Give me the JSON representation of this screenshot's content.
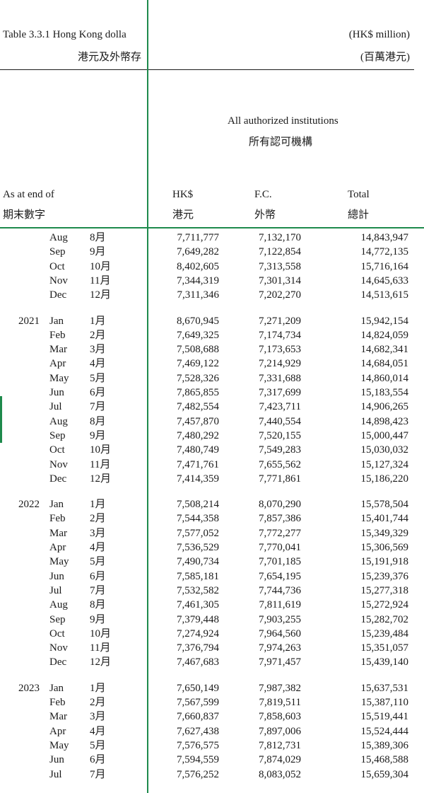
{
  "title_en": "Table 3.3.1  Hong Kong dolla",
  "title_zh": "港元及外幣存",
  "unit_en": "(HK$ million)",
  "unit_zh": "(百萬港元)",
  "group_en": "All authorized institutions",
  "group_zh": "所有認可機構",
  "col_period_en": "As at end of",
  "col_period_zh": "期末數字",
  "col_hk_en": "HK$",
  "col_hk_zh": "港元",
  "col_fc_en": "F.C.",
  "col_fc_zh": "外幣",
  "col_total_en": "Total",
  "col_total_zh": "總計",
  "rows": [
    {
      "year": "",
      "mon": "Aug",
      "zh": "8月",
      "hk": "7,711,777",
      "fc": "7,132,170",
      "total": "14,843,947"
    },
    {
      "year": "",
      "mon": "Sep",
      "zh": "9月",
      "hk": "7,649,282",
      "fc": "7,122,854",
      "total": "14,772,135"
    },
    {
      "year": "",
      "mon": "Oct",
      "zh": "10月",
      "hk": "8,402,605",
      "fc": "7,313,558",
      "total": "15,716,164"
    },
    {
      "year": "",
      "mon": "Nov",
      "zh": "11月",
      "hk": "7,344,319",
      "fc": "7,301,314",
      "total": "14,645,633"
    },
    {
      "year": "",
      "mon": "Dec",
      "zh": "12月",
      "hk": "7,311,346",
      "fc": "7,202,270",
      "total": "14,513,615"
    },
    {
      "year": "2021",
      "mon": "Jan",
      "zh": "1月",
      "hk": "8,670,945",
      "fc": "7,271,209",
      "total": "15,942,154"
    },
    {
      "year": "",
      "mon": "Feb",
      "zh": "2月",
      "hk": "7,649,325",
      "fc": "7,174,734",
      "total": "14,824,059"
    },
    {
      "year": "",
      "mon": "Mar",
      "zh": "3月",
      "hk": "7,508,688",
      "fc": "7,173,653",
      "total": "14,682,341"
    },
    {
      "year": "",
      "mon": "Apr",
      "zh": "4月",
      "hk": "7,469,122",
      "fc": "7,214,929",
      "total": "14,684,051"
    },
    {
      "year": "",
      "mon": "May",
      "zh": "5月",
      "hk": "7,528,326",
      "fc": "7,331,688",
      "total": "14,860,014"
    },
    {
      "year": "",
      "mon": "Jun",
      "zh": "6月",
      "hk": "7,865,855",
      "fc": "7,317,699",
      "total": "15,183,554"
    },
    {
      "year": "",
      "mon": "Jul",
      "zh": "7月",
      "hk": "7,482,554",
      "fc": "7,423,711",
      "total": "14,906,265"
    },
    {
      "year": "",
      "mon": "Aug",
      "zh": "8月",
      "hk": "7,457,870",
      "fc": "7,440,554",
      "total": "14,898,423"
    },
    {
      "year": "",
      "mon": "Sep",
      "zh": "9月",
      "hk": "7,480,292",
      "fc": "7,520,155",
      "total": "15,000,447"
    },
    {
      "year": "",
      "mon": "Oct",
      "zh": "10月",
      "hk": "7,480,749",
      "fc": "7,549,283",
      "total": "15,030,032"
    },
    {
      "year": "",
      "mon": "Nov",
      "zh": "11月",
      "hk": "7,471,761",
      "fc": "7,655,562",
      "total": "15,127,324"
    },
    {
      "year": "",
      "mon": "Dec",
      "zh": "12月",
      "hk": "7,414,359",
      "fc": "7,771,861",
      "total": "15,186,220"
    },
    {
      "year": "2022",
      "mon": "Jan",
      "zh": "1月",
      "hk": "7,508,214",
      "fc": "8,070,290",
      "total": "15,578,504"
    },
    {
      "year": "",
      "mon": "Feb",
      "zh": "2月",
      "hk": "7,544,358",
      "fc": "7,857,386",
      "total": "15,401,744"
    },
    {
      "year": "",
      "mon": "Mar",
      "zh": "3月",
      "hk": "7,577,052",
      "fc": "7,772,277",
      "total": "15,349,329"
    },
    {
      "year": "",
      "mon": "Apr",
      "zh": "4月",
      "hk": "7,536,529",
      "fc": "7,770,041",
      "total": "15,306,569"
    },
    {
      "year": "",
      "mon": "May",
      "zh": "5月",
      "hk": "7,490,734",
      "fc": "7,701,185",
      "total": "15,191,918"
    },
    {
      "year": "",
      "mon": "Jun",
      "zh": "6月",
      "hk": "7,585,181",
      "fc": "7,654,195",
      "total": "15,239,376"
    },
    {
      "year": "",
      "mon": "Jul",
      "zh": "7月",
      "hk": "7,532,582",
      "fc": "7,744,736",
      "total": "15,277,318"
    },
    {
      "year": "",
      "mon": "Aug",
      "zh": "8月",
      "hk": "7,461,305",
      "fc": "7,811,619",
      "total": "15,272,924"
    },
    {
      "year": "",
      "mon": "Sep",
      "zh": "9月",
      "hk": "7,379,448",
      "fc": "7,903,255",
      "total": "15,282,702"
    },
    {
      "year": "",
      "mon": "Oct",
      "zh": "10月",
      "hk": "7,274,924",
      "fc": "7,964,560",
      "total": "15,239,484"
    },
    {
      "year": "",
      "mon": "Nov",
      "zh": "11月",
      "hk": "7,376,794",
      "fc": "7,974,263",
      "total": "15,351,057"
    },
    {
      "year": "",
      "mon": "Dec",
      "zh": "12月",
      "hk": "7,467,683",
      "fc": "7,971,457",
      "total": "15,439,140"
    },
    {
      "year": "2023",
      "mon": "Jan",
      "zh": "1月",
      "hk": "7,650,149",
      "fc": "7,987,382",
      "total": "15,637,531"
    },
    {
      "year": "",
      "mon": "Feb",
      "zh": "2月",
      "hk": "7,567,599",
      "fc": "7,819,511",
      "total": "15,387,110"
    },
    {
      "year": "",
      "mon": "Mar",
      "zh": "3月",
      "hk": "7,660,837",
      "fc": "7,858,603",
      "total": "15,519,441"
    },
    {
      "year": "",
      "mon": "Apr",
      "zh": "4月",
      "hk": "7,627,438",
      "fc": "7,897,006",
      "total": "15,524,444"
    },
    {
      "year": "",
      "mon": "May",
      "zh": "5月",
      "hk": "7,576,575",
      "fc": "7,812,731",
      "total": "15,389,306"
    },
    {
      "year": "",
      "mon": "Jun",
      "zh": "6月",
      "hk": "7,594,559",
      "fc": "7,874,029",
      "total": "15,468,588"
    },
    {
      "year": "",
      "mon": "Jul",
      "zh": "7月",
      "hk": "7,576,252",
      "fc": "8,083,052",
      "total": "15,659,304"
    }
  ]
}
